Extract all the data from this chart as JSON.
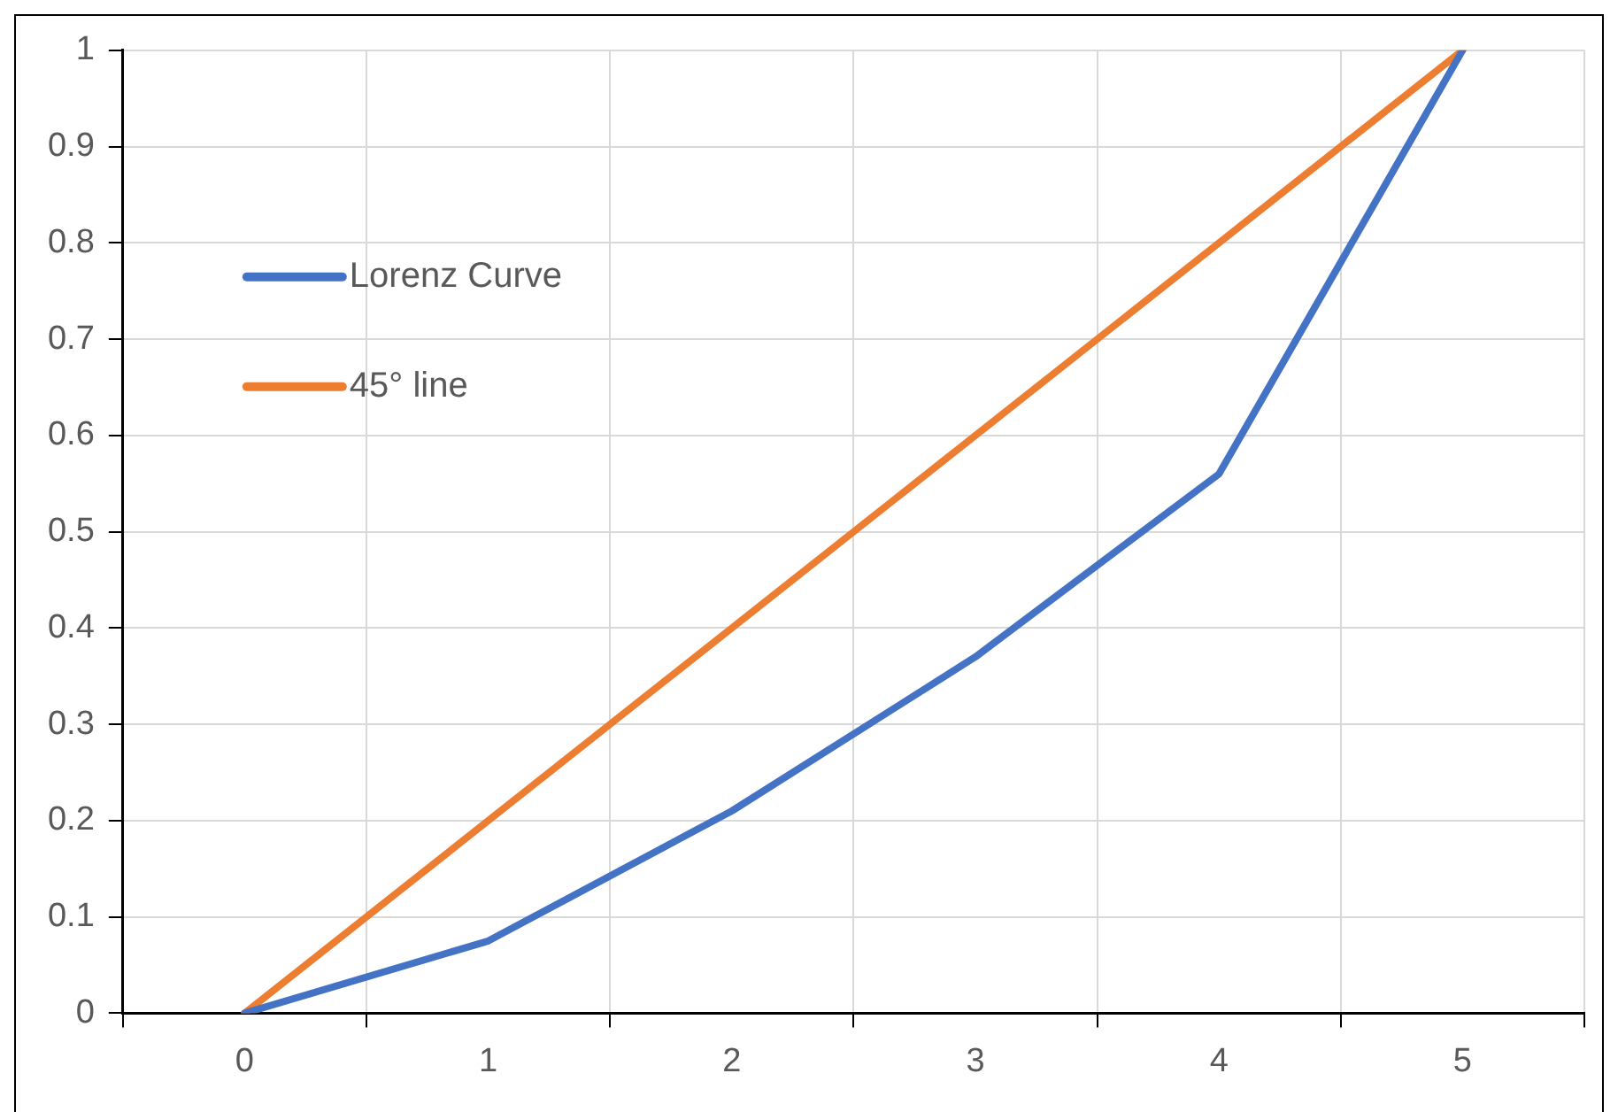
{
  "chart_data": {
    "type": "line",
    "categories": [
      "0",
      "1",
      "2",
      "3",
      "4",
      "5"
    ],
    "series": [
      {
        "name": "Lorenz Curve",
        "color": "#4472c4",
        "values": [
          0,
          0.075,
          0.21,
          0.37,
          0.56,
          1
        ]
      },
      {
        "name": "45° line",
        "color": "#ed7d31",
        "values": [
          0,
          0.2,
          0.4,
          0.6,
          0.8,
          1
        ]
      }
    ],
    "ylim": [
      0,
      1
    ],
    "yticks": [
      0,
      0.1,
      0.2,
      0.3,
      0.4,
      0.5,
      0.6,
      0.7,
      0.8,
      0.9,
      1
    ],
    "grid": true,
    "legend": "top left",
    "marker": "none",
    "line_style": "solid"
  }
}
